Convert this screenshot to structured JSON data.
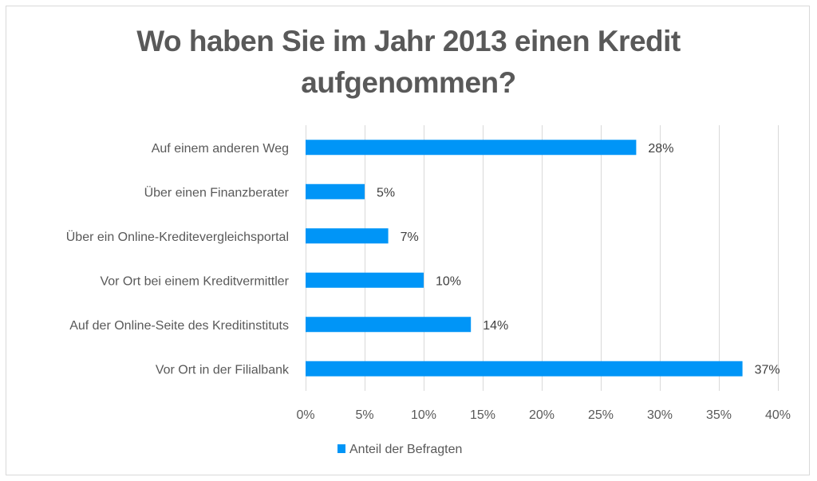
{
  "chart_data": {
    "type": "bar",
    "orientation": "horizontal",
    "title_lines": [
      "Wo haben Sie im Jahr 2013 einen Kredit",
      "aufgenommen?"
    ],
    "title": "Wo haben Sie im Jahr 2013 einen Kredit aufgenommen?",
    "categories": [
      "Auf einem anderen Weg",
      "Über einen Finanzberater",
      "Über ein Online-Kreditevergleichsportal",
      "Vor Ort bei einem Kreditvermittler",
      "Auf der Online-Seite des Kreditinstituts",
      "Vor Ort in der Filialbank"
    ],
    "series": [
      {
        "name": "Anteil der Befragten",
        "values": [
          28,
          5,
          7,
          10,
          14,
          37
        ],
        "data_labels": [
          "28%",
          "5%",
          "7%",
          "10%",
          "14%",
          "37%"
        ],
        "color": "#0095f7"
      }
    ],
    "xlabel": "",
    "ylabel": "",
    "xlim": [
      0,
      40
    ],
    "x_ticks": [
      0,
      5,
      10,
      15,
      20,
      25,
      30,
      35,
      40
    ],
    "x_tick_labels": [
      "0%",
      "5%",
      "10%",
      "15%",
      "20%",
      "25%",
      "30%",
      "35%",
      "40%"
    ],
    "grid": true,
    "legend_position": "bottom-left",
    "colors": {
      "bar": "#0095f7",
      "grid": "#d9d9d9",
      "text": "#595959",
      "title": "#595959"
    }
  }
}
